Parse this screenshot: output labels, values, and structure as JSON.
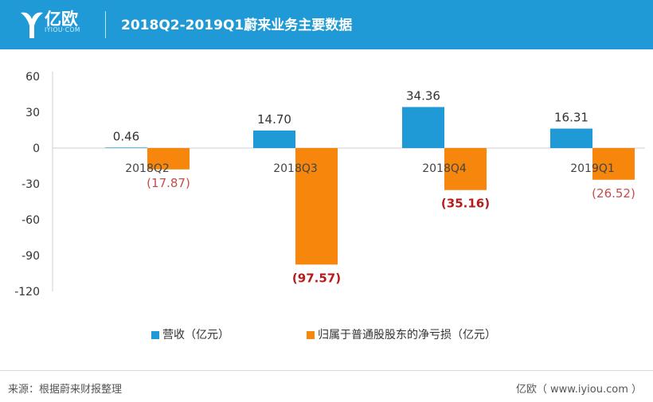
{
  "header": {
    "logo_name": "亿欧",
    "logo_domain": "IYIOU·COM",
    "title": "2018Q2-2019Q1蔚来业务主要数据"
  },
  "chart_data": {
    "type": "bar",
    "categories": [
      "2018Q2",
      "2018Q3",
      "2018Q4",
      "2019Q1"
    ],
    "series": [
      {
        "name": "营收（亿元）",
        "color": "#1f9ad6",
        "values": [
          0.46,
          14.7,
          34.36,
          16.31
        ],
        "labels": [
          "0.46",
          "14.70",
          "34.36",
          "16.31"
        ]
      },
      {
        "name": "归属于普通股股东的净亏损（亿元）",
        "color": "#f7860d",
        "values": [
          -17.87,
          -97.57,
          -35.16,
          -26.52
        ],
        "labels": [
          "(17.87)",
          "(97.57)",
          "(35.16)",
          "(26.52)"
        ],
        "bold": [
          false,
          true,
          true,
          false
        ]
      }
    ],
    "yticks": [
      60,
      30,
      0,
      -30,
      -60,
      -90,
      -120
    ],
    "ylim": [
      -120,
      60
    ],
    "grid": false,
    "legend_position": "bottom"
  },
  "footer": {
    "source": "来源：根据蔚来财报整理",
    "credit": "亿欧（ www.iyiou.com ）"
  }
}
